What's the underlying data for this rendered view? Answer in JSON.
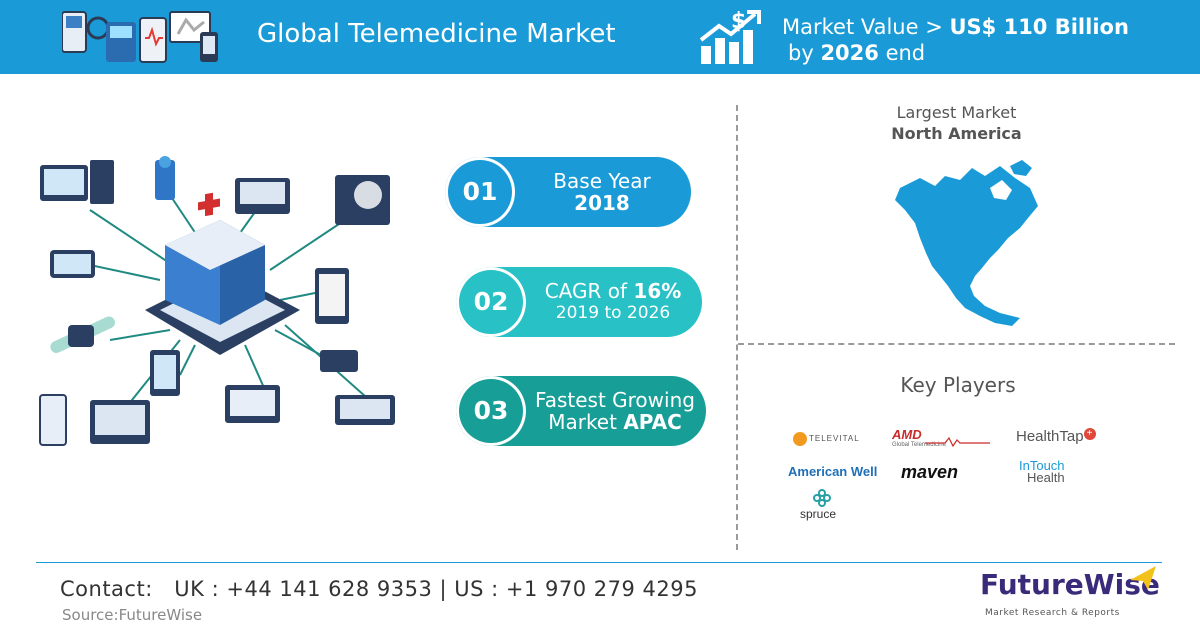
{
  "header": {
    "title": "Global Telemedicine Market",
    "value_prefix": "Market Value > ",
    "value_amount": "US$ 110 Billion",
    "value_by": "by ",
    "value_year": "2026",
    "value_suffix": " end"
  },
  "pills": [
    {
      "number": "01",
      "line1": "Base Year",
      "line2": "2018"
    },
    {
      "number": "02",
      "line1_prefix": "CAGR of ",
      "line1_bold": "16%",
      "line2": "2019 to 2026"
    },
    {
      "number": "03",
      "line1": "Fastest Growing",
      "line2_prefix": "Market ",
      "line2_bold": "APAC"
    }
  ],
  "largest_market": {
    "label": "Largest Market",
    "value": "North America"
  },
  "key_players": {
    "title": "Key Players",
    "logos": {
      "televital": "TELEVITAL",
      "amd": "AMD",
      "amd_sub": "Global Telemedicine",
      "healthtap": "HealthTap",
      "american_well": "American Well",
      "maven": "maven",
      "intouch": "InTouch",
      "intouch_health": "Health",
      "spruce": "spruce"
    }
  },
  "footer": {
    "contact": "Contact:   UK : +44 141 628 9353 | US : +1 970 279 4295",
    "source": "Source:FutureWise",
    "brand": "FutureWise",
    "brand_sub": "Market Research & Reports"
  },
  "colors": {
    "primary": "#1a9bd7",
    "teal": "#27c1c6",
    "dark_teal": "#179e96",
    "brand_purple": "#3a2a7a"
  }
}
